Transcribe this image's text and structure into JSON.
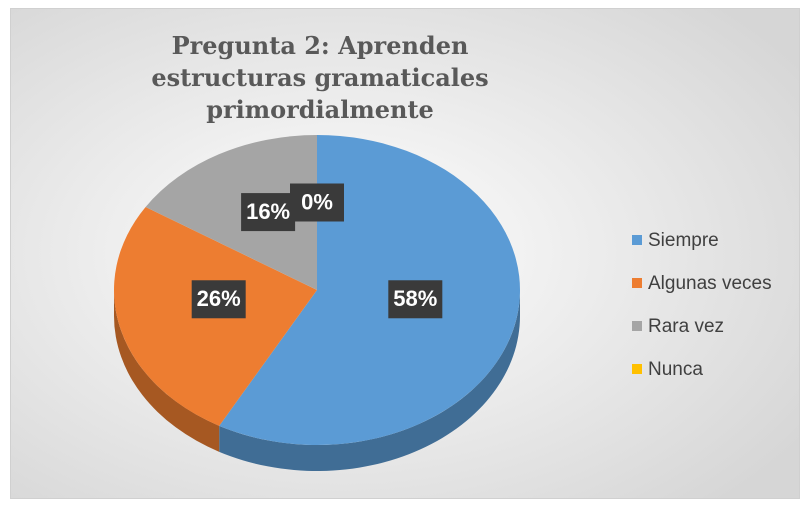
{
  "chart_data": {
    "type": "pie",
    "title": "Pregunta 2: Aprenden estructuras gramaticales primordialmente",
    "categories": [
      "Siempre",
      "Algunas veces",
      "Rara vez",
      "Nunca"
    ],
    "values": [
      58,
      26,
      16,
      0
    ],
    "value_labels": [
      "58%",
      "26%",
      "16%",
      "0%"
    ],
    "colors": [
      "#5b9bd5",
      "#ed7d31",
      "#a5a5a5",
      "#ffc000"
    ],
    "legend": "right"
  }
}
